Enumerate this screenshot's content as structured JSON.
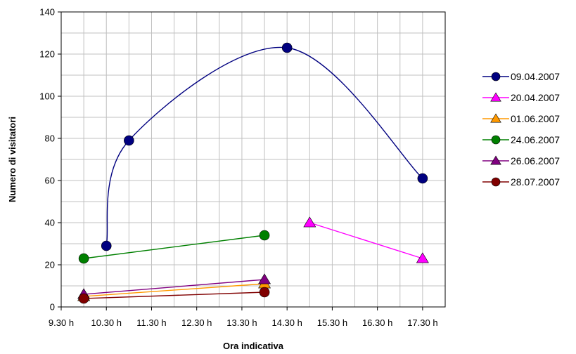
{
  "chart_data": {
    "type": "line",
    "title": "",
    "xlabel": "Ora indicativa",
    "ylabel": "Numero di visitatori",
    "ylim": [
      0,
      140
    ],
    "y_ticks": [
      0,
      20,
      40,
      60,
      80,
      100,
      120,
      140
    ],
    "x_axis_unit": "hour of day",
    "xlim": [
      9.5,
      18.0
    ],
    "x_ticks": [
      {
        "value": 9.5,
        "label": "9.30 h"
      },
      {
        "value": 10.5,
        "label": "10.30 h"
      },
      {
        "value": 11.5,
        "label": "11.30 h"
      },
      {
        "value": 12.5,
        "label": "12.30 h"
      },
      {
        "value": 13.5,
        "label": "13.30 h"
      },
      {
        "value": 14.5,
        "label": "14.30 h"
      },
      {
        "value": 15.5,
        "label": "15.30 h"
      },
      {
        "value": 16.5,
        "label": "16.30 h"
      },
      {
        "value": 17.5,
        "label": "17.30 h"
      }
    ],
    "grid": true,
    "legend_position": "right",
    "series": [
      {
        "name": "09.04.2007",
        "color": "#000080",
        "marker": "circle",
        "smooth": true,
        "points": [
          {
            "x": 10.5,
            "y": 29
          },
          {
            "x": 11.0,
            "y": 79
          },
          {
            "x": 14.5,
            "y": 123
          },
          {
            "x": 17.5,
            "y": 61
          }
        ]
      },
      {
        "name": "20.04.2007",
        "color": "#FF00FF",
        "marker": "triangle",
        "smooth": false,
        "points": [
          {
            "x": 15.0,
            "y": 40
          },
          {
            "x": 17.5,
            "y": 23
          }
        ]
      },
      {
        "name": "01.06.2007",
        "color": "#FF9900",
        "marker": "triangle",
        "smooth": false,
        "points": [
          {
            "x": 10.0,
            "y": 5
          },
          {
            "x": 14.0,
            "y": 11
          }
        ]
      },
      {
        "name": "24.06.2007",
        "color": "#008000",
        "marker": "circle",
        "smooth": false,
        "points": [
          {
            "x": 10.0,
            "y": 23
          },
          {
            "x": 14.0,
            "y": 34
          }
        ]
      },
      {
        "name": "26.06.2007",
        "color": "#800080",
        "marker": "triangle",
        "smooth": false,
        "points": [
          {
            "x": 10.0,
            "y": 6
          },
          {
            "x": 14.0,
            "y": 13
          }
        ]
      },
      {
        "name": "28.07.2007",
        "color": "#800000",
        "marker": "circle",
        "smooth": false,
        "points": [
          {
            "x": 10.0,
            "y": 4
          },
          {
            "x": 14.0,
            "y": 7
          }
        ]
      }
    ]
  }
}
